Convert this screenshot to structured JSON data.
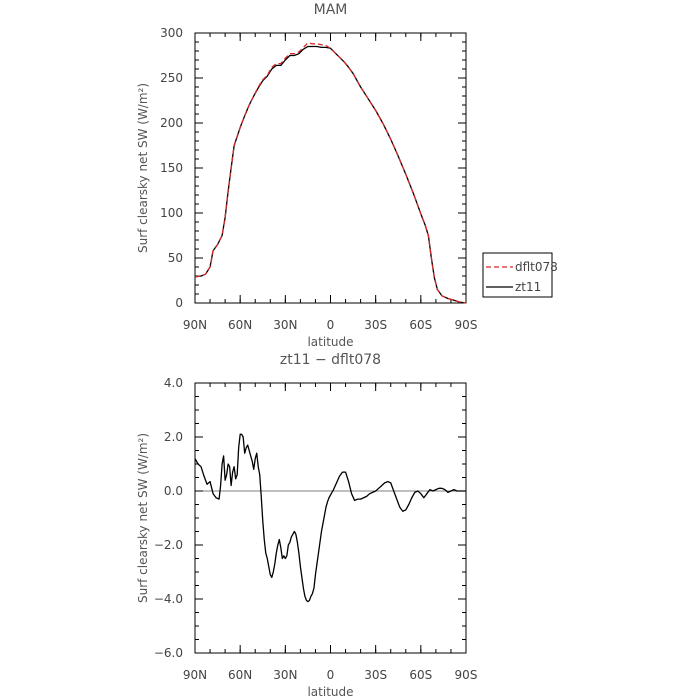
{
  "chart_data": [
    {
      "type": "line",
      "title": "MAM",
      "xlabel": "latitude",
      "ylabel": "Surf clearsky net SW (W/m²)",
      "xlim": [
        90,
        -90
      ],
      "ylim": [
        0,
        300
      ],
      "x_ticks": [
        90,
        60,
        30,
        0,
        -30,
        -60,
        -90
      ],
      "x_tick_labels": [
        "90N",
        "60N",
        "30N",
        "0",
        "30S",
        "60S",
        "90S"
      ],
      "y_ticks": [
        0,
        50,
        100,
        150,
        200,
        250,
        300
      ],
      "y_tick_labels": [
        "0",
        "50",
        "100",
        "150",
        "200",
        "250",
        "300"
      ],
      "legend_position": "right",
      "series": [
        {
          "name": "dflt078",
          "style": "dashed",
          "color": "#d62728",
          "x": [
            90,
            86,
            83,
            80,
            78,
            75,
            72,
            70,
            68,
            66,
            64,
            62,
            60,
            57,
            54,
            51,
            48,
            45,
            42,
            39,
            36,
            33,
            30,
            27,
            24,
            21,
            18,
            15,
            12,
            9,
            6,
            3,
            0,
            -3,
            -6,
            -9,
            -12,
            -15,
            -20,
            -25,
            -30,
            -35,
            -40,
            -45,
            -50,
            -55,
            -60,
            -63,
            -65,
            -67,
            -69,
            -71,
            -74,
            -78,
            -82,
            -86,
            -90
          ],
          "y": [
            29,
            30,
            32,
            40,
            58,
            65,
            75,
            95,
            125,
            150,
            175,
            185,
            195,
            208,
            220,
            230,
            240,
            248,
            253,
            262,
            266,
            266,
            272,
            277,
            277,
            279,
            284,
            289,
            288,
            288,
            287,
            286,
            283,
            278,
            273,
            268,
            262,
            255,
            240,
            227,
            214,
            199,
            182,
            163,
            143,
            122,
            99,
            86,
            75,
            50,
            28,
            15,
            8,
            5,
            3,
            1,
            0
          ]
        },
        {
          "name": "zt11",
          "style": "solid",
          "color": "#000000",
          "x": [
            90,
            86,
            83,
            80,
            78,
            75,
            72,
            70,
            68,
            66,
            64,
            62,
            60,
            57,
            54,
            51,
            48,
            45,
            42,
            39,
            36,
            33,
            30,
            27,
            24,
            21,
            18,
            15,
            12,
            9,
            6,
            3,
            0,
            -3,
            -6,
            -9,
            -12,
            -15,
            -20,
            -25,
            -30,
            -35,
            -40,
            -45,
            -50,
            -55,
            -60,
            -63,
            -65,
            -67,
            -69,
            -71,
            -74,
            -78,
            -82,
            -86,
            -90
          ],
          "y": [
            29,
            30,
            32,
            40,
            58,
            65,
            75,
            95,
            124,
            150,
            175,
            185,
            195,
            208,
            220,
            230,
            239,
            247,
            252,
            260,
            264,
            264,
            270,
            275,
            275,
            277,
            282,
            285,
            285,
            285,
            284,
            284,
            283,
            278,
            273,
            268,
            262,
            255,
            240,
            227,
            214,
            199,
            182,
            163,
            143,
            122,
            99,
            86,
            75,
            50,
            28,
            15,
            8,
            5,
            3,
            1,
            0
          ]
        }
      ]
    },
    {
      "type": "line",
      "title": "zt11 − dflt078",
      "xlabel": "latitude",
      "ylabel": "Surf clearsky net SW (W/m²)",
      "xlim": [
        90,
        -90
      ],
      "ylim": [
        -6,
        4
      ],
      "x_ticks": [
        90,
        60,
        30,
        0,
        -30,
        -60,
        -90
      ],
      "x_tick_labels": [
        "90N",
        "60N",
        "30N",
        "0",
        "30S",
        "60S",
        "90S"
      ],
      "y_ticks": [
        4,
        2,
        0,
        -2,
        -4,
        -6
      ],
      "y_tick_labels": [
        "4.0",
        "2.0",
        "0.0",
        "−2.0",
        "−4.0",
        "−6.0"
      ],
      "series": [
        {
          "name": "zt11",
          "style": "solid",
          "color": "#000000",
          "x": [
            90,
            88,
            86,
            84,
            82,
            80,
            78,
            76,
            74,
            73,
            72,
            71,
            70,
            69,
            68,
            67,
            66,
            65,
            64,
            63,
            62,
            61,
            60,
            59,
            58,
            57,
            56,
            55,
            54,
            53,
            52,
            51,
            50,
            49,
            48,
            47,
            46,
            45,
            44,
            43,
            42,
            41,
            40,
            39,
            38,
            37,
            36,
            35,
            34,
            33,
            32,
            31,
            30,
            29,
            28,
            27,
            26,
            25,
            24,
            23,
            22,
            21,
            20,
            19,
            18,
            17,
            16,
            15,
            14,
            13,
            12,
            11,
            10,
            9,
            8,
            7,
            6,
            5,
            4,
            3,
            2,
            1,
            0,
            -1,
            -2,
            -4,
            -6,
            -8,
            -10,
            -12,
            -14,
            -16,
            -18,
            -20,
            -22,
            -24,
            -26,
            -28,
            -30,
            -32,
            -34,
            -36,
            -38,
            -40,
            -42,
            -44,
            -46,
            -48,
            -50,
            -52,
            -54,
            -56,
            -58,
            -60,
            -62,
            -64,
            -66,
            -68,
            -70,
            -72,
            -74,
            -76,
            -78,
            -80,
            -82,
            -84,
            -86,
            -88,
            -90
          ],
          "y": [
            1.2,
            1.0,
            0.9,
            0.55,
            0.25,
            0.35,
            -0.1,
            -0.25,
            -0.3,
            0.2,
            1.0,
            1.3,
            0.4,
            0.6,
            1.0,
            0.9,
            0.2,
            0.7,
            0.9,
            0.45,
            0.6,
            1.6,
            2.1,
            2.1,
            2.0,
            1.4,
            1.6,
            1.7,
            1.5,
            1.3,
            1.1,
            0.8,
            1.2,
            1.4,
            0.9,
            0.6,
            -0.2,
            -1.1,
            -1.8,
            -2.3,
            -2.5,
            -2.8,
            -3.1,
            -3.2,
            -3.0,
            -2.7,
            -2.3,
            -2.0,
            -1.8,
            -2.1,
            -2.5,
            -2.4,
            -2.5,
            -2.4,
            -2.0,
            -1.9,
            -1.7,
            -1.6,
            -1.5,
            -1.6,
            -1.9,
            -2.3,
            -2.8,
            -3.2,
            -3.6,
            -3.9,
            -4.05,
            -4.1,
            -4.05,
            -3.9,
            -3.8,
            -3.6,
            -3.1,
            -2.7,
            -2.3,
            -1.9,
            -1.5,
            -1.2,
            -0.9,
            -0.6,
            -0.4,
            -0.25,
            -0.15,
            -0.05,
            0.05,
            0.3,
            0.55,
            0.7,
            0.7,
            0.35,
            -0.1,
            -0.35,
            -0.3,
            -0.3,
            -0.25,
            -0.2,
            -0.1,
            -0.05,
            0.0,
            0.1,
            0.2,
            0.3,
            0.35,
            0.3,
            0.0,
            -0.3,
            -0.6,
            -0.75,
            -0.7,
            -0.5,
            -0.25,
            -0.05,
            0.0,
            -0.1,
            -0.25,
            -0.1,
            0.05,
            0.0,
            0.05,
            0.1,
            0.1,
            0.05,
            -0.05,
            0.0,
            0.05,
            0.0,
            0.0,
            0.0,
            0.0
          ]
        }
      ]
    }
  ]
}
